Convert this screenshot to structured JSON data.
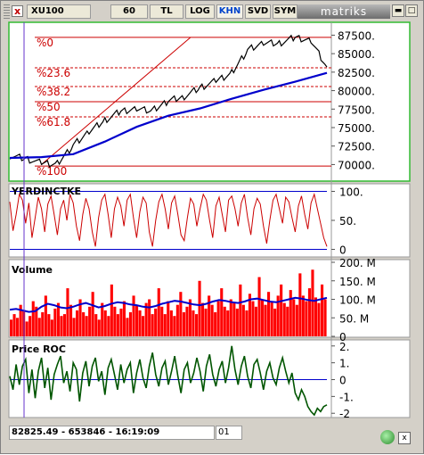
{
  "toolbar": {
    "close": "x",
    "symbol": "XU100",
    "buttons": [
      "60",
      "TL",
      "LOG",
      "KHN",
      "SVD",
      "SYM"
    ],
    "active": "KHN",
    "brand": "matriks",
    "minimize": "▬",
    "restore": "□"
  },
  "main_chart": {
    "fib_labels": [
      "%0",
      "%23.6",
      "%38.2",
      "%50",
      "%61.8",
      "%100"
    ],
    "fib_ratios": [
      0,
      0.236,
      0.382,
      0.5,
      0.618,
      1.0
    ],
    "y_ticks": [
      "87500.",
      "85000.",
      "82500.",
      "80000.",
      "77500.",
      "75000.",
      "72500.",
      "70000."
    ],
    "y_values": [
      87500,
      85000,
      82500,
      80000,
      77500,
      75000,
      72500,
      70000
    ],
    "colors": {
      "price": "#000000",
      "average": "#0000cc",
      "fib": "#cc0000",
      "frame": "#33bb33"
    }
  },
  "panels": {
    "yerdinctke": {
      "title": "YERDINCTKE",
      "ticks": [
        "100.",
        "50.",
        "0"
      ]
    },
    "volume": {
      "title": "Volume",
      "ticks": [
        "200. M",
        "150. M",
        "100. M",
        "50. M",
        "0"
      ]
    },
    "roc": {
      "title": "Price ROC",
      "ticks": [
        "2.",
        "1.",
        "0",
        "-1.",
        "-2"
      ]
    }
  },
  "status": {
    "readout": "82825.49 - 653846 - 16:19:09",
    "cursor": "01"
  },
  "chart_data": [
    {
      "type": "line",
      "title": "",
      "series": [
        {
          "x": [
            0,
            5,
            10,
            15,
            20,
            25,
            30,
            35,
            40,
            45,
            50,
            55,
            60,
            65,
            70,
            75,
            80,
            85,
            90,
            95,
            100
          ],
          "values": [
            71200,
            70800,
            70200,
            70100,
            72600,
            74400,
            76000,
            77200,
            77600,
            77300,
            78600,
            79200,
            80400,
            81300,
            82400,
            85500,
            86400,
            86400,
            87200,
            86800,
            83200
          ]
        },
        {
          "x": [
            0,
            10,
            20,
            30,
            40,
            50,
            60,
            70,
            80,
            90,
            100
          ],
          "values": [
            70900,
            71000,
            71400,
            73100,
            75100,
            76600,
            77600,
            78900,
            80100,
            81200,
            82400
          ]
        }
      ],
      "ylim": [
        68000,
        89000
      ],
      "fibonacci": {
        "high": 87200,
        "low": 69800
      },
      "trendline": {
        "from": [
          10,
          70000
        ],
        "to": [
          57,
          87200
        ]
      }
    },
    {
      "type": "line",
      "title": "YERDINCTKE",
      "ylim": [
        -10,
        110
      ],
      "reference_lines": [
        0,
        50,
        100
      ],
      "values": [
        82,
        32,
        60,
        95,
        85,
        45,
        80,
        20,
        55,
        90,
        70,
        30,
        78,
        92,
        60,
        25,
        70,
        85,
        50,
        95,
        80,
        40,
        15,
        60,
        88,
        70,
        30,
        5,
        55,
        85,
        95,
        60,
        20,
        70,
        90,
        75,
        40,
        85,
        95,
        55,
        20,
        65,
        90,
        80,
        30,
        5,
        50,
        82,
        95,
        70,
        35,
        80,
        92,
        60,
        25,
        15,
        55,
        88,
        78,
        40,
        70,
        95,
        85,
        50,
        20,
        75,
        90,
        60,
        30,
        85,
        92,
        70,
        40,
        80,
        95,
        55,
        25,
        70,
        88,
        78,
        40,
        10,
        50,
        85,
        95,
        70,
        45,
        90,
        82,
        55,
        30,
        75,
        92,
        60,
        35,
        80,
        95,
        70,
        45,
        20,
        5
      ]
    },
    {
      "type": "bar",
      "title": "Volume",
      "ylim": [
        0,
        200000000
      ],
      "values_M": [
        45,
        60,
        50,
        85,
        70,
        40,
        55,
        95,
        80,
        50,
        65,
        110,
        60,
        45,
        75,
        90,
        55,
        60,
        130,
        85,
        50,
        70,
        100,
        65,
        55,
        80,
        120,
        60,
        45,
        90,
        70,
        55,
        140,
        80,
        60,
        75,
        95,
        50,
        65,
        110,
        85,
        70,
        55,
        90,
        100,
        60,
        75,
        130,
        80,
        60,
        95,
        70,
        55,
        85,
        120,
        65,
        80,
        100,
        70,
        60,
        150,
        90,
        75,
        110,
        85,
        65,
        95,
        130,
        80,
        70,
        100,
        90,
        75,
        140,
        85,
        70,
        115,
        95,
        80,
        160,
        100,
        85,
        120,
        95,
        75,
        110,
        140,
        90,
        80,
        125,
        100,
        85,
        170,
        110,
        95,
        130,
        180,
        105,
        90,
        140,
        100
      ],
      "moving_average_M": [
        72,
        74,
        70,
        66,
        68,
        80,
        88,
        84,
        78,
        76,
        80,
        86,
        90,
        84,
        78,
        82,
        88,
        92,
        90,
        86,
        84,
        80,
        78,
        82,
        88,
        92,
        96,
        94,
        90,
        86,
        84,
        88,
        94,
        98,
        96,
        92,
        90,
        94,
        100,
        102,
        98,
        94,
        92,
        96,
        100,
        104,
        102,
        98,
        96,
        100,
        104
      ]
    },
    {
      "type": "line",
      "title": "Price ROC",
      "ylim": [
        -2.2,
        2.2
      ],
      "reference_lines": [
        0
      ],
      "values": [
        0.2,
        -0.6,
        0.9,
        -0.3,
        0.8,
        1.2,
        -0.8,
        0.6,
        -1.1,
        0.5,
        1.3,
        -0.5,
        0.7,
        -1.2,
        0.3,
        0.9,
        1.4,
        -0.2,
        0.5,
        -0.7,
        1.0,
        0.6,
        -1.3,
        0.4,
        1.1,
        -0.4,
        0.8,
        1.3,
        -0.1,
        0.5,
        -0.9,
        0.7,
        1.2,
        0.3,
        -0.6,
        0.9,
        -0.2,
        0.6,
        1.0,
        -0.8,
        0.4,
        1.2,
        0.1,
        -0.5,
        0.8,
        1.6,
        0.3,
        -0.4,
        0.7,
        1.1,
        -0.3,
        0.5,
        1.4,
        0.2,
        -0.8,
        0.6,
        1.0,
        -0.2,
        0.4,
        1.3,
        0.5,
        -0.7,
        0.8,
        1.5,
        0.3,
        -0.4,
        0.6,
        1.1,
        -0.2,
        0.7,
        2.0,
        0.6,
        -0.3,
        0.8,
        1.4,
        0.2,
        -0.5,
        0.9,
        1.2,
        0.4,
        -0.6,
        0.5,
        1.0,
        0.1,
        -0.3,
        0.7,
        1.3,
        0.5,
        -0.2,
        0.4,
        -0.8,
        -1.2,
        -0.6,
        -1.0,
        -1.6,
        -1.9,
        -2.1,
        -1.7,
        -1.9,
        -1.6,
        -1.5
      ]
    }
  ]
}
